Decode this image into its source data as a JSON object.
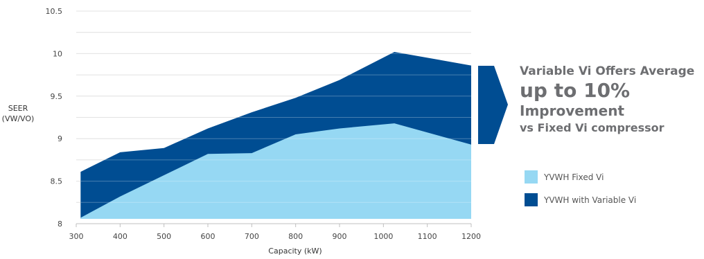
{
  "chart_data": {
    "type": "area",
    "xlabel": "Capacity (kW)",
    "ylabel_lines": [
      "SEER",
      "(VW/VO)"
    ],
    "xlim": [
      300,
      1200
    ],
    "ylim": [
      8,
      10.5
    ],
    "x_ticks": [
      300,
      400,
      500,
      600,
      700,
      800,
      900,
      1000,
      1100,
      1200
    ],
    "y_ticks": [
      8,
      8.5,
      9,
      9.5,
      10,
      10.5
    ],
    "y_tick_labels": [
      "8",
      "8.5",
      "9",
      "9.5",
      "10",
      "10.5"
    ],
    "grid": true,
    "legend_position": "right",
    "series": [
      {
        "name": "YVWH with Variable Vi",
        "color": "#004d92",
        "x": [
          310,
          400,
          500,
          600,
          700,
          800,
          900,
          1025,
          1200
        ],
        "y": [
          8.61,
          8.84,
          8.89,
          9.12,
          9.31,
          9.48,
          9.69,
          10.02,
          9.86
        ]
      },
      {
        "name": "YVWH Fixed Vi",
        "color": "#96d8f3",
        "x": [
          310,
          400,
          500,
          600,
          700,
          800,
          900,
          1025,
          1200
        ],
        "y": [
          8.07,
          8.32,
          8.57,
          8.82,
          8.83,
          9.05,
          9.12,
          9.18,
          8.93
        ]
      }
    ]
  },
  "callout": {
    "line1": "Variable Vi  Offers Average",
    "line2": "up to 10%",
    "line3": "Improvement",
    "line4": "vs Fixed Vi compressor",
    "arrow_color": "#004d92"
  },
  "legend": [
    {
      "label": "YVWH Fixed Vi",
      "color": "#96d8f3"
    },
    {
      "label": "YVWH with Variable Vi",
      "color": "#004d92"
    }
  ]
}
